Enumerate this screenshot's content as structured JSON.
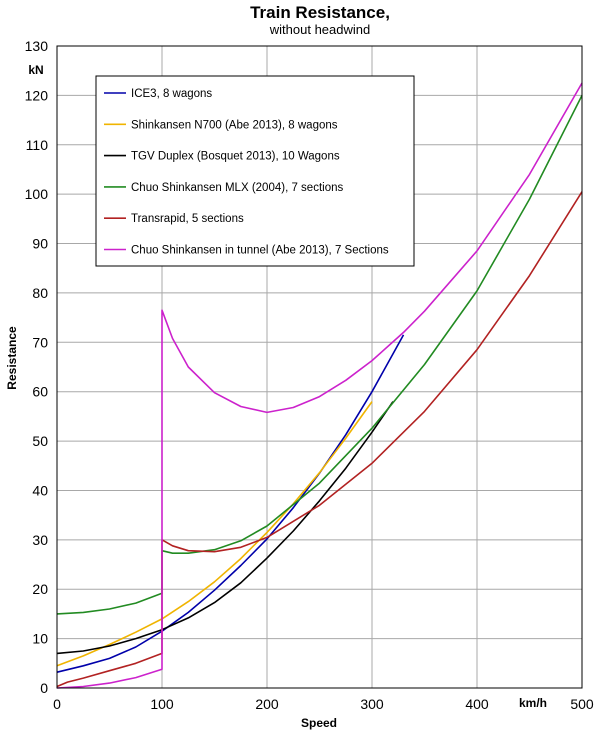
{
  "chart_data": {
    "type": "line",
    "title": "Train Resistance,",
    "subtitle": "without headwind",
    "xlabel": "Speed",
    "ylabel": "Resistance",
    "x_unit": "km/h",
    "y_unit": "kN",
    "xlim": [
      0,
      500
    ],
    "ylim": [
      0,
      130
    ],
    "xticks": [
      0,
      100,
      200,
      300,
      400,
      500
    ],
    "yticks": [
      0,
      10,
      20,
      30,
      40,
      50,
      60,
      70,
      80,
      90,
      100,
      110,
      120,
      130
    ],
    "grid": true,
    "legend_position": "top-left",
    "series": [
      {
        "name": "ICE3, 8 wagons",
        "color": "#0000aa",
        "x": [
          0,
          25,
          50,
          75,
          100,
          125,
          150,
          175,
          200,
          225,
          250,
          275,
          300,
          330
        ],
        "y": [
          3.2,
          4.5,
          6.0,
          8.3,
          11.5,
          15.3,
          19.8,
          24.8,
          30.2,
          36.5,
          43.5,
          51.3,
          60.0,
          71.5
        ]
      },
      {
        "name": "Shinkansen N700 (Abe 2013), 8 wagons",
        "color": "#f0b400",
        "x": [
          0,
          25,
          50,
          75,
          100,
          125,
          150,
          175,
          200,
          225,
          250,
          275,
          300
        ],
        "y": [
          4.5,
          6.5,
          8.8,
          11.3,
          14.0,
          17.5,
          21.5,
          26.2,
          31.5,
          37.3,
          43.6,
          50.6,
          58.0
        ]
      },
      {
        "name": "TGV Duplex (Bosquet 2013), 10 Wagons",
        "color": "#000000",
        "x": [
          0,
          25,
          50,
          75,
          100,
          125,
          150,
          175,
          200,
          225,
          250,
          275,
          300,
          320
        ],
        "y": [
          7.0,
          7.5,
          8.5,
          10.0,
          11.8,
          14.2,
          17.3,
          21.3,
          26.3,
          31.8,
          37.9,
          44.5,
          51.8,
          58.0
        ]
      },
      {
        "name": "Chuo Shinkansen MLX (2004), 7 sections",
        "color": "#228b22",
        "x": [
          0,
          25,
          50,
          75,
          100,
          100,
          110,
          125,
          150,
          175,
          200,
          250,
          300,
          350,
          400,
          450,
          500
        ],
        "y": [
          15.0,
          15.3,
          16.0,
          17.2,
          19.2,
          27.8,
          27.3,
          27.3,
          28.0,
          29.8,
          32.8,
          41.5,
          52.6,
          65.5,
          80.4,
          99.0,
          120.0
        ]
      },
      {
        "name": "Transrapid, 5 sections",
        "color": "#b22222",
        "x": [
          0,
          10,
          25,
          50,
          75,
          100,
          100,
          110,
          125,
          150,
          175,
          200,
          250,
          300,
          350,
          400,
          450,
          500
        ],
        "y": [
          0.3,
          1.2,
          2.0,
          3.5,
          5.0,
          7.0,
          30.0,
          28.8,
          27.8,
          27.6,
          28.5,
          30.5,
          37.0,
          45.5,
          56.0,
          68.5,
          83.5,
          100.5
        ]
      },
      {
        "name": "Chuo Shinkansen in tunnel (Abe 2013), 7 Sections",
        "color": "#cc22cc",
        "x": [
          0,
          25,
          50,
          75,
          100,
          100,
          110,
          125,
          150,
          175,
          200,
          225,
          250,
          275,
          300,
          330,
          350,
          400,
          450,
          500
        ],
        "y": [
          0,
          0.3,
          1.0,
          2.1,
          3.8,
          76.5,
          70.8,
          65.0,
          59.8,
          57.0,
          55.8,
          56.8,
          59.0,
          62.3,
          66.3,
          72.0,
          76.3,
          88.5,
          104.0,
          122.5
        ]
      }
    ]
  }
}
